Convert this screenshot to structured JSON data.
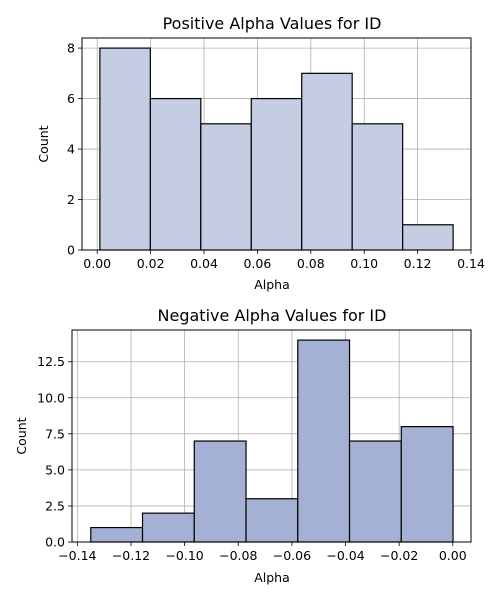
{
  "chart_data": [
    {
      "type": "bar",
      "title": "Positive Alpha Values for ID",
      "xlabel": "Alpha",
      "ylabel": "Count",
      "bins": [
        {
          "start": 0.001,
          "end": 0.0199,
          "count": 8
        },
        {
          "start": 0.0199,
          "end": 0.0388,
          "count": 6
        },
        {
          "start": 0.0388,
          "end": 0.0577,
          "count": 5
        },
        {
          "start": 0.0577,
          "end": 0.0766,
          "count": 6
        },
        {
          "start": 0.0766,
          "end": 0.0955,
          "count": 7
        },
        {
          "start": 0.0955,
          "end": 0.1144,
          "count": 5
        },
        {
          "start": 0.1144,
          "end": 0.1333,
          "count": 1
        }
      ],
      "xlim": [
        -0.0057,
        0.14
      ],
      "ylim": [
        0,
        8.4
      ],
      "xticks": [
        0.0,
        0.02,
        0.04,
        0.06,
        0.08,
        0.1,
        0.12,
        0.14
      ],
      "xtick_labels": [
        "0.00",
        "0.02",
        "0.04",
        "0.06",
        "0.08",
        "0.10",
        "0.12",
        "0.14"
      ],
      "yticks": [
        0,
        2,
        4,
        6,
        8
      ],
      "ytick_labels": [
        "0",
        "2",
        "4",
        "6",
        "8"
      ],
      "grid": true,
      "bar_color": "#c4cde1",
      "edge_color": "#000000"
    },
    {
      "type": "bar",
      "title": "Negative Alpha Values for ID",
      "xlabel": "Alpha",
      "ylabel": "Count",
      "bins": [
        {
          "start": -0.135,
          "end": -0.1157,
          "count": 1
        },
        {
          "start": -0.1157,
          "end": -0.0964,
          "count": 2
        },
        {
          "start": -0.0964,
          "end": -0.0771,
          "count": 7
        },
        {
          "start": -0.0771,
          "end": -0.0578,
          "count": 3
        },
        {
          "start": -0.0578,
          "end": -0.0385,
          "count": 14
        },
        {
          "start": -0.0385,
          "end": -0.0192,
          "count": 7
        },
        {
          "start": -0.0192,
          "end": 0.0001,
          "count": 8
        }
      ],
      "xlim": [
        -0.142,
        0.0068
      ],
      "ylim": [
        0,
        14.7
      ],
      "xticks": [
        -0.14,
        -0.12,
        -0.1,
        -0.08,
        -0.06,
        -0.04,
        -0.02,
        0.0
      ],
      "xtick_labels": [
        "−0.14",
        "−0.12",
        "−0.10",
        "−0.08",
        "−0.06",
        "−0.04",
        "−0.02",
        "0.00"
      ],
      "yticks": [
        0,
        2.5,
        5,
        7.5,
        10,
        12.5
      ],
      "ytick_labels": [
        "0.0",
        "2.5",
        "5.0",
        "7.5",
        "10.0",
        "12.5"
      ],
      "grid": true,
      "bar_color": "#a5b1d4",
      "edge_color": "#000000"
    }
  ]
}
